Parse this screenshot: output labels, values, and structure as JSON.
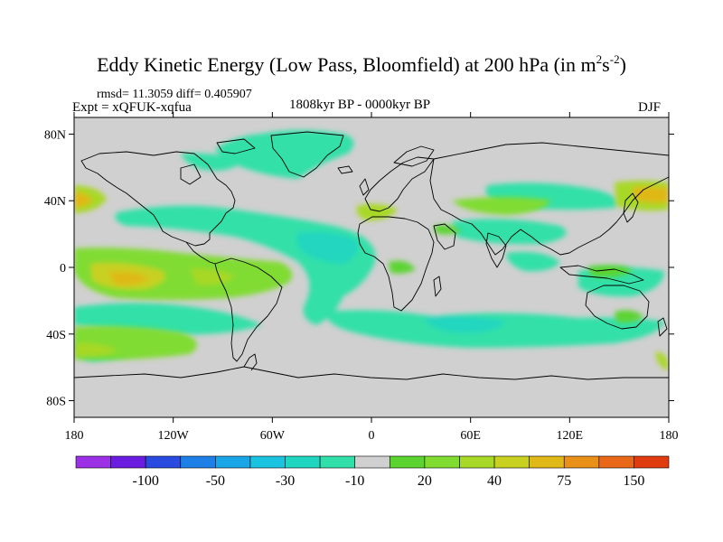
{
  "header": {
    "title": "Eddy Kinetic Energy (Low Pass, Bloomfield) at 200 hPa (in m",
    "title_exp1": "2",
    "title_mid": "s",
    "title_exp2": "-2",
    "title_close": ")",
    "stats": "rmsd= 11.3059 diff= 0.405907",
    "experiment": "Expt = xQFUK-xqfua",
    "period": "1808kyr BP - 0000kyr BP",
    "season": "DJF"
  },
  "map": {
    "lat_ticks": [
      {
        "value": 80,
        "label": "80N"
      },
      {
        "value": 40,
        "label": "40N"
      },
      {
        "value": 0,
        "label": "0"
      },
      {
        "value": -40,
        "label": "40S"
      },
      {
        "value": -80,
        "label": "80S"
      }
    ],
    "lon_ticks": [
      {
        "value": -180,
        "label": "180"
      },
      {
        "value": -120,
        "label": "120W"
      },
      {
        "value": -60,
        "label": "60W"
      },
      {
        "value": 0,
        "label": "0"
      },
      {
        "value": 60,
        "label": "60E"
      },
      {
        "value": 120,
        "label": "120E"
      },
      {
        "value": 180,
        "label": "180"
      }
    ],
    "background_color": "#d0d0d0",
    "coast_color": "#000000"
  },
  "colorbar": {
    "colors": [
      "#9b30e6",
      "#6a1de0",
      "#2a4be0",
      "#1e7fe6",
      "#1aa6e6",
      "#1ac4e0",
      "#20d6c0",
      "#30e0a8",
      "#d0d0d0",
      "#5cd430",
      "#80dc30",
      "#a8d828",
      "#c8d020",
      "#e0b818",
      "#e89018",
      "#e86818",
      "#e03c10"
    ],
    "labels": [
      "-100",
      "-50",
      "-30",
      "-10",
      "20",
      "40",
      "75",
      "150"
    ]
  }
}
